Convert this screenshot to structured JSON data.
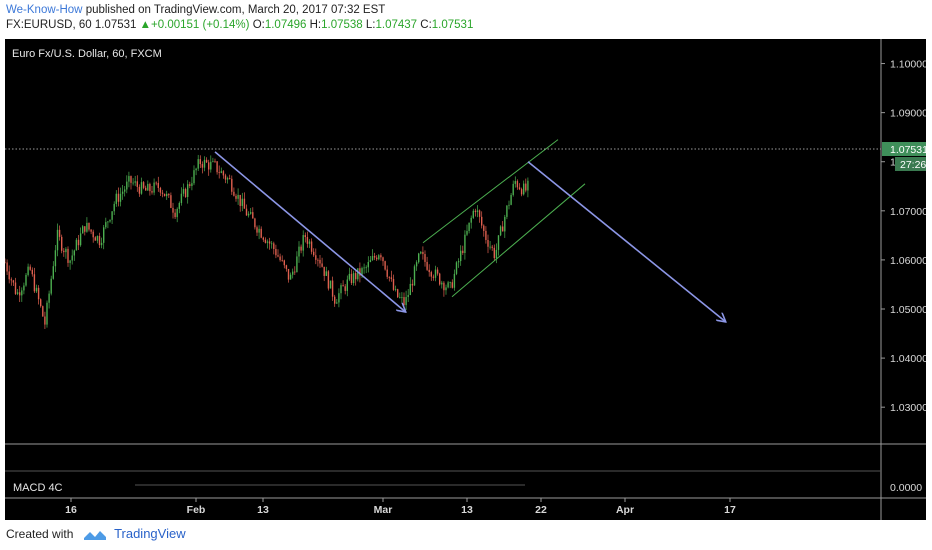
{
  "header": {
    "author": "We-Know-How",
    "published_on": "published on TradingView.com, March 20, 2017 07:32 EST",
    "symbol": "FX:EURUSD, 60",
    "last": "1.07531",
    "change": "+0.00151 (+0.14%)",
    "o_label": "O:",
    "o": "1.07496",
    "h_label": "H:",
    "h": "1.07538",
    "l_label": "L:",
    "l": "1.07437",
    "c_label": "C:",
    "c": "1.07531"
  },
  "footer": {
    "created_with": "Created with",
    "brand": "TradingView"
  },
  "colors": {
    "background": "#000000",
    "grid": "#333333",
    "candle_up": "#4caf50",
    "candle_down": "#e0604f",
    "trendline": "#8c96e6",
    "channel": "#4caf50",
    "price_tag": "#3f8f5a"
  },
  "icons": [
    "up-triangle-icon",
    "tradingview-logo-icon"
  ],
  "chart_data": {
    "type": "candlestick",
    "title": "Euro Fx/U.S. Dollar, 60, FXCM",
    "x_ticks": [
      "16",
      "Feb",
      "13",
      "Mar",
      "13",
      "22",
      "Apr",
      "17"
    ],
    "y_ticks": [
      "1.10000",
      "1.09000",
      "1.08000",
      "1.07000",
      "1.06000",
      "1.05000",
      "1.04000",
      "1.03000"
    ],
    "ylim": [
      1.0225,
      1.105
    ],
    "last_price": "1.07531",
    "countdown": "27:26",
    "grid": false,
    "price_path": [
      [
        0,
        1.0595
      ],
      [
        12,
        1.053
      ],
      [
        25,
        1.058
      ],
      [
        40,
        1.047
      ],
      [
        52,
        1.065
      ],
      [
        65,
        1.06
      ],
      [
        80,
        1.067
      ],
      [
        95,
        1.064
      ],
      [
        110,
        1.072
      ],
      [
        125,
        1.076
      ],
      [
        140,
        1.074
      ],
      [
        155,
        1.075
      ],
      [
        170,
        1.07
      ],
      [
        182,
        1.0745
      ],
      [
        195,
        1.08
      ],
      [
        210,
        1.079
      ],
      [
        225,
        1.076
      ],
      [
        240,
        1.07
      ],
      [
        255,
        1.066
      ],
      [
        270,
        1.062
      ],
      [
        285,
        1.056
      ],
      [
        300,
        1.065
      ],
      [
        315,
        1.06
      ],
      [
        330,
        1.052
      ],
      [
        345,
        1.056
      ],
      [
        360,
        1.058
      ],
      [
        375,
        1.062
      ],
      [
        390,
        1.053
      ],
      [
        400,
        1.051
      ],
      [
        415,
        1.061
      ],
      [
        430,
        1.057
      ],
      [
        445,
        1.054
      ],
      [
        460,
        1.064
      ],
      [
        470,
        1.071
      ],
      [
        480,
        1.065
      ],
      [
        490,
        1.061
      ],
      [
        500,
        1.069
      ],
      [
        510,
        1.076
      ],
      [
        520,
        1.074
      ],
      [
        525,
        1.0753
      ]
    ],
    "annotations": {
      "downtrend_1": {
        "from": [
          210,
          1.082
        ],
        "to": [
          400,
          1.0495
        ]
      },
      "projection": {
        "from": [
          523,
          1.08
        ],
        "to": [
          720,
          1.0475
        ]
      },
      "channel_lower": {
        "from": [
          447,
          1.0525
        ],
        "to": [
          580,
          1.0755
        ]
      },
      "channel_upper": {
        "from": [
          418,
          1.0635
        ],
        "to": [
          553,
          1.0845
        ]
      }
    },
    "indicator": {
      "name": "MACD 4C",
      "y_tick": "0.0000"
    }
  }
}
